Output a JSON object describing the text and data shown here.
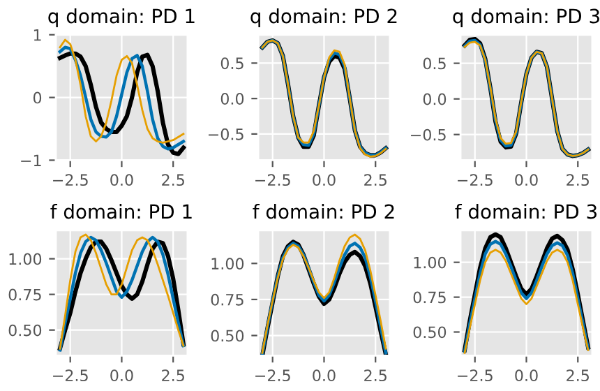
{
  "chart_data": [
    {
      "type": "line",
      "title": "q domain: PD 1",
      "grid": true,
      "xlim": [
        -3.2,
        3.2
      ],
      "ylim": [
        -1,
        1
      ],
      "xticks": [
        {
          "value": -2.5,
          "label": "−2.5"
        },
        {
          "value": 0,
          "label": "0.0"
        },
        {
          "value": 2.5,
          "label": "2.5"
        }
      ],
      "yticks": [
        {
          "value": -1,
          "label": "−1"
        },
        0,
        1
      ],
      "x": [
        -3,
        -2.75,
        -2.5,
        -2.25,
        -2,
        -1.75,
        -1.5,
        -1.25,
        -1,
        -0.75,
        -0.5,
        -0.25,
        0,
        0.25,
        0.5,
        0.75,
        1,
        1.25,
        1.5,
        1.75,
        2,
        2.25,
        2.5,
        2.75,
        3
      ],
      "series": [
        {
          "color": "#000000",
          "values": [
            0.63,
            0.67,
            0.7,
            0.7,
            0.65,
            0.5,
            0.2,
            -0.15,
            -0.4,
            -0.5,
            -0.55,
            -0.55,
            -0.45,
            -0.3,
            0.0,
            0.4,
            0.65,
            0.68,
            0.5,
            0.1,
            -0.4,
            -0.75,
            -0.88,
            -0.9,
            -0.8
          ]
        },
        {
          "color": "#0072b2",
          "values": [
            0.73,
            0.8,
            0.78,
            0.6,
            0.35,
            0.0,
            -0.35,
            -0.55,
            -0.62,
            -0.63,
            -0.55,
            -0.3,
            0.05,
            0.4,
            0.62,
            0.67,
            0.5,
            0.1,
            -0.35,
            -0.65,
            -0.78,
            -0.82,
            -0.8,
            -0.75,
            -0.7
          ]
        },
        {
          "color": "#e69f00",
          "values": [
            0.8,
            0.92,
            0.85,
            0.6,
            0.2,
            -0.3,
            -0.62,
            -0.7,
            -0.62,
            -0.4,
            -0.05,
            0.35,
            0.6,
            0.66,
            0.55,
            0.2,
            -0.2,
            -0.5,
            -0.65,
            -0.7,
            -0.72,
            -0.7,
            -0.68,
            -0.63,
            -0.58
          ]
        }
      ]
    },
    {
      "type": "line",
      "title": "q domain: PD 2",
      "grid": true,
      "xlim": [
        -3.2,
        3.2
      ],
      "ylim": [
        -0.87,
        0.9
      ],
      "xticks": [
        {
          "value": -2.5,
          "label": "−2.5"
        },
        {
          "value": 0,
          "label": "0.0"
        },
        {
          "value": 2.5,
          "label": "2.5"
        }
      ],
      "yticks": [
        {
          "value": -0.5,
          "label": "−0.5"
        },
        {
          "value": 0,
          "label": "0.0"
        },
        0.5
      ],
      "x": [
        -3,
        -2.75,
        -2.5,
        -2.25,
        -2,
        -1.75,
        -1.5,
        -1.25,
        -1,
        -0.75,
        -0.5,
        -0.25,
        0,
        0.25,
        0.5,
        0.75,
        1,
        1.25,
        1.5,
        1.75,
        2,
        2.25,
        2.5,
        2.75,
        3
      ],
      "series": [
        {
          "color": "#000000",
          "values": [
            0.72,
            0.8,
            0.82,
            0.78,
            0.6,
            0.2,
            -0.25,
            -0.55,
            -0.68,
            -0.68,
            -0.52,
            -0.1,
            0.3,
            0.52,
            0.6,
            0.58,
            0.42,
            0.0,
            -0.45,
            -0.68,
            -0.77,
            -0.8,
            -0.8,
            -0.76,
            -0.7
          ]
        },
        {
          "color": "#0072b2",
          "values": [
            0.72,
            0.8,
            0.82,
            0.78,
            0.6,
            0.2,
            -0.25,
            -0.55,
            -0.65,
            -0.66,
            -0.5,
            -0.1,
            0.3,
            0.55,
            0.64,
            0.62,
            0.45,
            0.0,
            -0.45,
            -0.68,
            -0.77,
            -0.8,
            -0.8,
            -0.76,
            -0.7
          ]
        },
        {
          "color": "#e69f00",
          "values": [
            0.72,
            0.8,
            0.82,
            0.78,
            0.6,
            0.2,
            -0.25,
            -0.55,
            -0.62,
            -0.62,
            -0.46,
            -0.1,
            0.3,
            0.58,
            0.68,
            0.66,
            0.48,
            0.0,
            -0.45,
            -0.7,
            -0.79,
            -0.82,
            -0.81,
            -0.77,
            -0.71
          ]
        }
      ]
    },
    {
      "type": "line",
      "title": "q domain: PD 3",
      "grid": true,
      "xlim": [
        -3.2,
        3.2
      ],
      "ylim": [
        -0.86,
        0.9
      ],
      "xticks": [
        {
          "value": -2.5,
          "label": "−2.5"
        },
        {
          "value": 0,
          "label": "0.0"
        },
        {
          "value": 2.5,
          "label": "2.5"
        }
      ],
      "yticks": [
        {
          "value": -0.5,
          "label": "−0.5"
        },
        {
          "value": 0,
          "label": "0.0"
        },
        0.5
      ],
      "x": [
        -3,
        -2.75,
        -2.5,
        -2.25,
        -2,
        -1.75,
        -1.5,
        -1.25,
        -1,
        -0.75,
        -0.5,
        -0.25,
        0,
        0.25,
        0.5,
        0.75,
        1,
        1.25,
        1.5,
        1.75,
        2,
        2.25,
        2.5,
        2.75,
        3
      ],
      "series": [
        {
          "color": "#000000",
          "values": [
            0.75,
            0.83,
            0.84,
            0.78,
            0.56,
            0.15,
            -0.32,
            -0.6,
            -0.68,
            -0.67,
            -0.49,
            -0.05,
            0.35,
            0.58,
            0.66,
            0.64,
            0.45,
            0.0,
            -0.45,
            -0.7,
            -0.78,
            -0.8,
            -0.79,
            -0.76,
            -0.71
          ]
        },
        {
          "color": "#0072b2",
          "values": [
            0.74,
            0.81,
            0.82,
            0.76,
            0.55,
            0.15,
            -0.3,
            -0.58,
            -0.66,
            -0.65,
            -0.48,
            -0.05,
            0.35,
            0.58,
            0.66,
            0.64,
            0.45,
            0.0,
            -0.45,
            -0.7,
            -0.78,
            -0.8,
            -0.79,
            -0.76,
            -0.71
          ]
        },
        {
          "color": "#e69f00",
          "values": [
            0.73,
            0.79,
            0.8,
            0.75,
            0.55,
            0.16,
            -0.28,
            -0.55,
            -0.63,
            -0.62,
            -0.46,
            -0.04,
            0.35,
            0.58,
            0.66,
            0.64,
            0.45,
            0.0,
            -0.45,
            -0.7,
            -0.78,
            -0.8,
            -0.79,
            -0.76,
            -0.71
          ]
        }
      ]
    },
    {
      "type": "line",
      "title": "f domain: PD 1",
      "grid": true,
      "xlim": [
        -3.2,
        3.2
      ],
      "ylim": [
        0.32,
        1.2
      ],
      "xticks": [
        {
          "value": -2.5,
          "label": "−2.5"
        },
        {
          "value": 0,
          "label": "0.0"
        },
        {
          "value": 2.5,
          "label": "2.5"
        }
      ],
      "yticks": [
        {
          "value": 0.5,
          "label": "0.50"
        },
        0.75,
        {
          "value": 1,
          "label": "1.00"
        }
      ],
      "x": [
        -3,
        -2.75,
        -2.5,
        -2.25,
        -2,
        -1.75,
        -1.5,
        -1.25,
        -1,
        -0.75,
        -0.5,
        -0.25,
        0,
        0.25,
        0.5,
        0.75,
        1,
        1.25,
        1.5,
        1.75,
        2,
        2.25,
        2.5,
        2.75,
        3
      ],
      "series": [
        {
          "color": "#000000",
          "values": [
            0.37,
            0.5,
            0.62,
            0.77,
            0.9,
            1.0,
            1.08,
            1.12,
            1.12,
            1.07,
            0.99,
            0.9,
            0.81,
            0.75,
            0.72,
            0.75,
            0.84,
            0.96,
            1.07,
            1.12,
            1.11,
            1.02,
            0.86,
            0.64,
            0.4
          ]
        },
        {
          "color": "#0072b2",
          "values": [
            0.36,
            0.55,
            0.72,
            0.9,
            1.04,
            1.12,
            1.15,
            1.13,
            1.06,
            0.97,
            0.87,
            0.77,
            0.73,
            0.77,
            0.85,
            0.95,
            1.05,
            1.12,
            1.15,
            1.12,
            1.03,
            0.89,
            0.72,
            0.55,
            0.39
          ]
        },
        {
          "color": "#e69f00",
          "values": [
            0.37,
            0.6,
            0.85,
            1.05,
            1.15,
            1.17,
            1.13,
            1.04,
            0.93,
            0.82,
            0.75,
            0.75,
            0.82,
            0.94,
            1.06,
            1.13,
            1.15,
            1.13,
            1.06,
            0.96,
            0.85,
            0.74,
            0.62,
            0.5,
            0.39
          ]
        }
      ]
    },
    {
      "type": "line",
      "title": "f domain: PD 2",
      "grid": true,
      "xlim": [
        -3.2,
        3.2
      ],
      "ylim": [
        0.36,
        1.23
      ],
      "xticks": [
        {
          "value": -2.5,
          "label": "−2.5"
        },
        {
          "value": 0,
          "label": "0.0"
        },
        {
          "value": 2.5,
          "label": "2.5"
        }
      ],
      "yticks": [
        {
          "value": 0.5,
          "label": "0.50"
        },
        0.75,
        {
          "value": 1,
          "label": "1.00"
        }
      ],
      "x": [
        -3,
        -2.75,
        -2.5,
        -2.25,
        -2,
        -1.75,
        -1.5,
        -1.25,
        -1,
        -0.75,
        -0.5,
        -0.25,
        0,
        0.25,
        0.5,
        0.75,
        1,
        1.25,
        1.5,
        1.75,
        2,
        2.25,
        2.5,
        2.75,
        3
      ],
      "series": [
        {
          "color": "#000000",
          "values": [
            0.36,
            0.55,
            0.73,
            0.91,
            1.05,
            1.12,
            1.15,
            1.13,
            1.06,
            0.96,
            0.86,
            0.77,
            0.72,
            0.75,
            0.83,
            0.93,
            1.01,
            1.06,
            1.08,
            1.05,
            0.98,
            0.86,
            0.7,
            0.53,
            0.37
          ]
        },
        {
          "color": "#0072b2",
          "values": [
            0.37,
            0.56,
            0.74,
            0.91,
            1.04,
            1.11,
            1.14,
            1.12,
            1.06,
            0.97,
            0.87,
            0.78,
            0.74,
            0.78,
            0.87,
            0.97,
            1.06,
            1.12,
            1.14,
            1.11,
            1.04,
            0.91,
            0.74,
            0.56,
            0.38
          ]
        },
        {
          "color": "#e69f00",
          "values": [
            0.38,
            0.57,
            0.74,
            0.9,
            1.03,
            1.1,
            1.13,
            1.11,
            1.05,
            0.97,
            0.88,
            0.8,
            0.76,
            0.8,
            0.9,
            1.02,
            1.12,
            1.18,
            1.2,
            1.17,
            1.09,
            0.95,
            0.78,
            0.6,
            0.41
          ]
        }
      ]
    },
    {
      "type": "line",
      "title": "f domain: PD 3",
      "grid": true,
      "xlim": [
        -3.2,
        3.2
      ],
      "ylim": [
        0.33,
        1.23
      ],
      "xticks": [
        {
          "value": -2.5,
          "label": "−2.5"
        },
        {
          "value": 0,
          "label": "0.0"
        },
        {
          "value": 2.5,
          "label": "2.5"
        }
      ],
      "yticks": [
        {
          "value": 0.5,
          "label": "0.50"
        },
        0.75,
        {
          "value": 1,
          "label": "1.00"
        }
      ],
      "x": [
        -3,
        -2.75,
        -2.5,
        -2.25,
        -2,
        -1.75,
        -1.5,
        -1.25,
        -1,
        -0.75,
        -0.5,
        -0.25,
        0,
        0.25,
        0.5,
        0.75,
        1,
        1.25,
        1.5,
        1.75,
        2,
        2.25,
        2.5,
        2.75,
        3
      ],
      "series": [
        {
          "color": "#000000",
          "values": [
            0.37,
            0.58,
            0.77,
            0.96,
            1.1,
            1.18,
            1.2,
            1.18,
            1.1,
            1.0,
            0.9,
            0.81,
            0.77,
            0.81,
            0.9,
            1.0,
            1.1,
            1.17,
            1.19,
            1.16,
            1.09,
            0.95,
            0.77,
            0.58,
            0.39
          ]
        },
        {
          "color": "#0072b2",
          "values": [
            0.36,
            0.56,
            0.74,
            0.92,
            1.06,
            1.13,
            1.15,
            1.13,
            1.06,
            0.97,
            0.87,
            0.78,
            0.74,
            0.78,
            0.87,
            0.97,
            1.06,
            1.12,
            1.14,
            1.12,
            1.05,
            0.92,
            0.74,
            0.56,
            0.38
          ]
        },
        {
          "color": "#e69f00",
          "values": [
            0.35,
            0.53,
            0.7,
            0.87,
            1.0,
            1.07,
            1.09,
            1.07,
            1.01,
            0.92,
            0.83,
            0.74,
            0.7,
            0.74,
            0.83,
            0.92,
            1.01,
            1.07,
            1.09,
            1.07,
            1.0,
            0.87,
            0.7,
            0.53,
            0.37
          ]
        }
      ]
    }
  ]
}
